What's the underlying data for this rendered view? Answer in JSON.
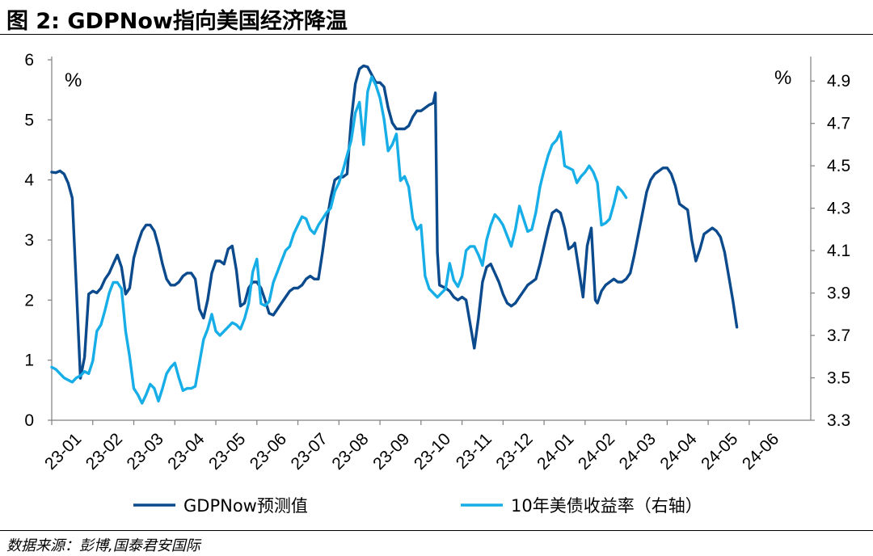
{
  "figure": {
    "title": "图 2:  GDPNow指向美国经济降温",
    "source": "数据来源：彭博,国泰君安国际"
  },
  "chart_data": {
    "type": "line",
    "title": "GDPNow指向美国经济降温",
    "left_axis": {
      "unit": "%",
      "ylim": [
        0,
        6
      ],
      "ticks": [
        "0",
        "1",
        "2",
        "3",
        "4",
        "5",
        "6"
      ]
    },
    "right_axis": {
      "unit": "%",
      "ylim": [
        3.3,
        5.0
      ],
      "ticks": [
        "3.3",
        "3.5",
        "3.7",
        "3.9",
        "4.1",
        "4.3",
        "4.5",
        "4.7",
        "4.9"
      ]
    },
    "x_range": [
      0,
      18.5
    ],
    "x_ticks": [
      "23-01",
      "23-02",
      "23-03",
      "23-04",
      "23-05",
      "23-06",
      "23-07",
      "23-08",
      "23-09",
      "23-10",
      "23-11",
      "23-12",
      "24-01",
      "24-02",
      "24-03",
      "24-04",
      "24-05",
      "24-06"
    ],
    "legend_position": "bottom",
    "grid": false,
    "series": [
      {
        "name": "GDPNow预测值",
        "axis": "left",
        "color": "#0b4a8c",
        "points": [
          [
            0.0,
            4.13
          ],
          [
            0.1,
            4.12
          ],
          [
            0.2,
            4.15
          ],
          [
            0.3,
            4.1
          ],
          [
            0.4,
            3.95
          ],
          [
            0.5,
            3.7
          ],
          [
            0.6,
            2.2
          ],
          [
            0.7,
            0.7
          ],
          [
            0.8,
            1.05
          ],
          [
            0.9,
            2.1
          ],
          [
            1.0,
            2.15
          ],
          [
            1.1,
            2.12
          ],
          [
            1.2,
            2.2
          ],
          [
            1.3,
            2.35
          ],
          [
            1.4,
            2.45
          ],
          [
            1.5,
            2.6
          ],
          [
            1.6,
            2.75
          ],
          [
            1.7,
            2.55
          ],
          [
            1.8,
            2.1
          ],
          [
            1.9,
            2.2
          ],
          [
            2.0,
            2.7
          ],
          [
            2.1,
            2.95
          ],
          [
            2.2,
            3.15
          ],
          [
            2.3,
            3.25
          ],
          [
            2.4,
            3.25
          ],
          [
            2.5,
            3.15
          ],
          [
            2.6,
            2.9
          ],
          [
            2.7,
            2.6
          ],
          [
            2.8,
            2.35
          ],
          [
            2.9,
            2.25
          ],
          [
            3.0,
            2.25
          ],
          [
            3.1,
            2.3
          ],
          [
            3.2,
            2.4
          ],
          [
            3.3,
            2.45
          ],
          [
            3.4,
            2.45
          ],
          [
            3.5,
            2.35
          ],
          [
            3.6,
            1.85
          ],
          [
            3.7,
            1.7
          ],
          [
            3.8,
            2.0
          ],
          [
            3.9,
            2.45
          ],
          [
            4.0,
            2.65
          ],
          [
            4.1,
            2.65
          ],
          [
            4.2,
            2.6
          ],
          [
            4.3,
            2.85
          ],
          [
            4.4,
            2.9
          ],
          [
            4.5,
            2.5
          ],
          [
            4.6,
            1.9
          ],
          [
            4.7,
            1.95
          ],
          [
            4.8,
            2.2
          ],
          [
            4.9,
            2.3
          ],
          [
            5.0,
            2.3
          ],
          [
            5.1,
            2.2
          ],
          [
            5.2,
            2.0
          ],
          [
            5.3,
            1.78
          ],
          [
            5.4,
            1.75
          ],
          [
            5.5,
            1.85
          ],
          [
            5.6,
            1.95
          ],
          [
            5.7,
            2.05
          ],
          [
            5.8,
            2.15
          ],
          [
            5.9,
            2.2
          ],
          [
            6.0,
            2.2
          ],
          [
            6.1,
            2.25
          ],
          [
            6.2,
            2.35
          ],
          [
            6.3,
            2.4
          ],
          [
            6.4,
            2.35
          ],
          [
            6.5,
            2.35
          ],
          [
            6.6,
            2.8
          ],
          [
            6.7,
            3.3
          ],
          [
            6.8,
            3.7
          ],
          [
            6.9,
            4.0
          ],
          [
            7.0,
            4.05
          ],
          [
            7.1,
            4.05
          ],
          [
            7.2,
            4.1
          ],
          [
            7.3,
            5.0
          ],
          [
            7.4,
            5.6
          ],
          [
            7.5,
            5.85
          ],
          [
            7.6,
            5.9
          ],
          [
            7.7,
            5.88
          ],
          [
            7.8,
            5.75
          ],
          [
            7.9,
            5.62
          ],
          [
            8.0,
            5.62
          ],
          [
            8.1,
            5.55
          ],
          [
            8.2,
            5.2
          ],
          [
            8.3,
            4.95
          ],
          [
            8.4,
            4.85
          ],
          [
            8.5,
            4.85
          ],
          [
            8.6,
            4.85
          ],
          [
            8.7,
            4.9
          ],
          [
            8.8,
            5.05
          ],
          [
            8.9,
            5.15
          ],
          [
            9.0,
            5.15
          ],
          [
            9.1,
            5.2
          ],
          [
            9.2,
            5.25
          ],
          [
            9.3,
            5.28
          ],
          [
            9.35,
            5.45
          ],
          [
            9.4,
            2.8
          ],
          [
            9.45,
            2.25
          ],
          [
            9.6,
            2.2
          ],
          [
            9.7,
            2.15
          ],
          [
            9.8,
            2.05
          ],
          [
            9.9,
            2.0
          ],
          [
            10.0,
            2.05
          ],
          [
            10.1,
            2.0
          ],
          [
            10.2,
            1.6
          ],
          [
            10.3,
            1.2
          ],
          [
            10.4,
            1.7
          ],
          [
            10.5,
            2.3
          ],
          [
            10.6,
            2.55
          ],
          [
            10.7,
            2.6
          ],
          [
            10.8,
            2.45
          ],
          [
            10.9,
            2.3
          ],
          [
            11.0,
            2.1
          ],
          [
            11.1,
            1.95
          ],
          [
            11.2,
            1.9
          ],
          [
            11.3,
            1.95
          ],
          [
            11.4,
            2.05
          ],
          [
            11.5,
            2.15
          ],
          [
            11.6,
            2.25
          ],
          [
            11.7,
            2.3
          ],
          [
            11.8,
            2.35
          ],
          [
            11.9,
            2.6
          ],
          [
            12.0,
            2.9
          ],
          [
            12.1,
            3.2
          ],
          [
            12.2,
            3.45
          ],
          [
            12.3,
            3.5
          ],
          [
            12.4,
            3.45
          ],
          [
            12.5,
            3.2
          ],
          [
            12.6,
            2.85
          ],
          [
            12.7,
            2.9
          ],
          [
            12.75,
            2.95
          ],
          [
            12.85,
            2.5
          ],
          [
            12.95,
            2.05
          ],
          [
            13.05,
            2.9
          ],
          [
            13.15,
            3.2
          ],
          [
            13.2,
            2.6
          ],
          [
            13.25,
            2.0
          ],
          [
            13.3,
            1.95
          ],
          [
            13.4,
            2.15
          ],
          [
            13.5,
            2.25
          ],
          [
            13.6,
            2.3
          ],
          [
            13.7,
            2.35
          ],
          [
            13.8,
            2.3
          ],
          [
            13.9,
            2.3
          ],
          [
            14.0,
            2.35
          ],
          [
            14.1,
            2.45
          ],
          [
            14.2,
            2.75
          ],
          [
            14.3,
            3.1
          ],
          [
            14.4,
            3.45
          ],
          [
            14.5,
            3.8
          ],
          [
            14.6,
            4.0
          ],
          [
            14.7,
            4.1
          ],
          [
            14.8,
            4.15
          ],
          [
            14.9,
            4.2
          ],
          [
            15.0,
            4.2
          ],
          [
            15.1,
            4.1
          ],
          [
            15.2,
            3.9
          ],
          [
            15.3,
            3.6
          ],
          [
            15.4,
            3.55
          ],
          [
            15.5,
            3.5
          ],
          [
            15.6,
            3.0
          ],
          [
            15.7,
            2.65
          ],
          [
            15.8,
            2.85
          ],
          [
            15.9,
            3.1
          ],
          [
            16.0,
            3.15
          ],
          [
            16.1,
            3.2
          ],
          [
            16.2,
            3.15
          ],
          [
            16.3,
            3.05
          ],
          [
            16.4,
            2.8
          ],
          [
            16.5,
            2.4
          ],
          [
            16.6,
            2.0
          ],
          [
            16.7,
            1.55
          ]
        ]
      },
      {
        "name": "10年美债收益率（右轴）",
        "axis": "right",
        "color": "#17aee8",
        "points": [
          [
            0.0,
            3.55
          ],
          [
            0.1,
            3.54
          ],
          [
            0.2,
            3.52
          ],
          [
            0.3,
            3.5
          ],
          [
            0.4,
            3.49
          ],
          [
            0.5,
            3.48
          ],
          [
            0.6,
            3.5
          ],
          [
            0.7,
            3.51
          ],
          [
            0.8,
            3.53
          ],
          [
            0.9,
            3.52
          ],
          [
            1.0,
            3.58
          ],
          [
            1.1,
            3.72
          ],
          [
            1.2,
            3.75
          ],
          [
            1.3,
            3.82
          ],
          [
            1.4,
            3.9
          ],
          [
            1.5,
            3.95
          ],
          [
            1.6,
            3.95
          ],
          [
            1.7,
            3.92
          ],
          [
            1.8,
            3.72
          ],
          [
            1.9,
            3.6
          ],
          [
            2.0,
            3.45
          ],
          [
            2.1,
            3.42
          ],
          [
            2.2,
            3.38
          ],
          [
            2.3,
            3.42
          ],
          [
            2.4,
            3.47
          ],
          [
            2.5,
            3.45
          ],
          [
            2.6,
            3.39
          ],
          [
            2.7,
            3.45
          ],
          [
            2.8,
            3.52
          ],
          [
            2.9,
            3.55
          ],
          [
            3.0,
            3.57
          ],
          [
            3.1,
            3.5
          ],
          [
            3.2,
            3.44
          ],
          [
            3.3,
            3.45
          ],
          [
            3.4,
            3.45
          ],
          [
            3.5,
            3.46
          ],
          [
            3.6,
            3.57
          ],
          [
            3.7,
            3.68
          ],
          [
            3.8,
            3.73
          ],
          [
            3.9,
            3.8
          ],
          [
            4.0,
            3.72
          ],
          [
            4.1,
            3.7
          ],
          [
            4.2,
            3.72
          ],
          [
            4.3,
            3.74
          ],
          [
            4.4,
            3.76
          ],
          [
            4.5,
            3.75
          ],
          [
            4.6,
            3.73
          ],
          [
            4.7,
            3.78
          ],
          [
            4.8,
            3.85
          ],
          [
            4.9,
            4.0
          ],
          [
            5.0,
            4.06
          ],
          [
            5.1,
            3.85
          ],
          [
            5.2,
            3.84
          ],
          [
            5.3,
            3.86
          ],
          [
            5.4,
            3.95
          ],
          [
            5.5,
            4.0
          ],
          [
            5.6,
            4.05
          ],
          [
            5.7,
            4.1
          ],
          [
            5.8,
            4.12
          ],
          [
            5.9,
            4.18
          ],
          [
            6.0,
            4.22
          ],
          [
            6.1,
            4.26
          ],
          [
            6.2,
            4.25
          ],
          [
            6.3,
            4.2
          ],
          [
            6.4,
            4.18
          ],
          [
            6.5,
            4.22
          ],
          [
            6.6,
            4.25
          ],
          [
            6.7,
            4.28
          ],
          [
            6.8,
            4.3
          ],
          [
            6.9,
            4.38
          ],
          [
            7.0,
            4.42
          ],
          [
            7.1,
            4.48
          ],
          [
            7.2,
            4.55
          ],
          [
            7.3,
            4.62
          ],
          [
            7.4,
            4.75
          ],
          [
            7.5,
            4.8
          ],
          [
            7.6,
            4.6
          ],
          [
            7.7,
            4.85
          ],
          [
            7.8,
            4.92
          ],
          [
            7.9,
            4.88
          ],
          [
            8.0,
            4.82
          ],
          [
            8.1,
            4.72
          ],
          [
            8.2,
            4.57
          ],
          [
            8.3,
            4.6
          ],
          [
            8.4,
            4.65
          ],
          [
            8.5,
            4.43
          ],
          [
            8.6,
            4.45
          ],
          [
            8.7,
            4.4
          ],
          [
            8.8,
            4.25
          ],
          [
            8.9,
            4.2
          ],
          [
            9.0,
            4.22
          ],
          [
            9.1,
            3.98
          ],
          [
            9.2,
            3.92
          ],
          [
            9.3,
            3.9
          ],
          [
            9.4,
            3.88
          ],
          [
            9.5,
            3.9
          ],
          [
            9.6,
            3.92
          ],
          [
            9.7,
            4.04
          ],
          [
            9.8,
            3.96
          ],
          [
            9.9,
            3.93
          ],
          [
            10.0,
            3.98
          ],
          [
            10.1,
            4.1
          ],
          [
            10.2,
            4.12
          ],
          [
            10.3,
            4.12
          ],
          [
            10.4,
            4.08
          ],
          [
            10.5,
            4.03
          ],
          [
            10.6,
            4.15
          ],
          [
            10.7,
            4.22
          ],
          [
            10.8,
            4.27
          ],
          [
            10.9,
            4.25
          ],
          [
            11.0,
            4.22
          ],
          [
            11.1,
            4.17
          ],
          [
            11.2,
            4.12
          ],
          [
            11.3,
            4.2
          ],
          [
            11.4,
            4.31
          ],
          [
            11.5,
            4.25
          ],
          [
            11.6,
            4.19
          ],
          [
            11.7,
            4.2
          ],
          [
            11.8,
            4.28
          ],
          [
            11.9,
            4.4
          ],
          [
            12.0,
            4.48
          ],
          [
            12.1,
            4.55
          ],
          [
            12.2,
            4.6
          ],
          [
            12.3,
            4.62
          ],
          [
            12.4,
            4.66
          ],
          [
            12.5,
            4.5
          ],
          [
            12.6,
            4.49
          ],
          [
            12.7,
            4.48
          ],
          [
            12.8,
            4.42
          ],
          [
            12.9,
            4.45
          ],
          [
            13.0,
            4.47
          ],
          [
            13.1,
            4.5
          ],
          [
            13.2,
            4.47
          ],
          [
            13.3,
            4.42
          ],
          [
            13.4,
            4.22
          ],
          [
            13.5,
            4.23
          ],
          [
            13.6,
            4.25
          ],
          [
            13.7,
            4.32
          ],
          [
            13.8,
            4.4
          ],
          [
            13.9,
            4.38
          ],
          [
            14.0,
            4.35
          ]
        ]
      }
    ]
  }
}
